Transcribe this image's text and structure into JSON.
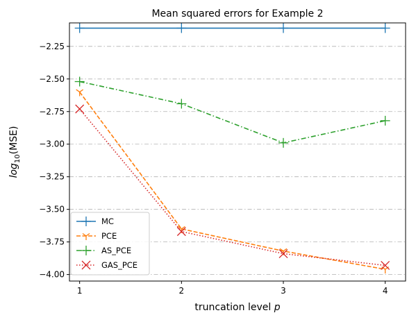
{
  "chart_data": {
    "type": "line",
    "title": "Mean squared errors for Example 2",
    "xlabel_main": "truncation level ",
    "xlabel_var": "p",
    "ylabel_prefix": "log",
    "ylabel_sub": "10",
    "ylabel_suffix": "(MSE)",
    "x": [
      1,
      2,
      3,
      4
    ],
    "x_ticks": [
      1,
      2,
      3,
      4
    ],
    "y_ticks": [
      -2.25,
      -2.5,
      -2.75,
      -3.0,
      -3.25,
      -3.5,
      -3.75,
      -4.0
    ],
    "y_tick_labels": [
      "−2.25",
      "−2.50",
      "−2.75",
      "−3.00",
      "−3.25",
      "−3.50",
      "−3.75",
      "−4.00"
    ],
    "xlim": [
      0.9,
      4.2
    ],
    "ylim": [
      -4.05,
      -2.07
    ],
    "grid": "y-dashdot",
    "legend_position": "lower-left",
    "series": [
      {
        "name": "MC",
        "values": [
          -2.11,
          -2.11,
          -2.11,
          -2.11
        ],
        "color": "#1f77b4",
        "linestyle": "solid",
        "marker": "plus"
      },
      {
        "name": "PCE",
        "values": [
          -2.6,
          -3.65,
          -3.82,
          -3.96
        ],
        "color": "#ff7f0e",
        "linestyle": "dashed",
        "marker": "tri-down"
      },
      {
        "name": "AS_PCE",
        "values": [
          -2.52,
          -2.69,
          -2.99,
          -2.82
        ],
        "color": "#2ca02c",
        "linestyle": "dashdot",
        "marker": "plus"
      },
      {
        "name": "GAS_PCE",
        "values": [
          -2.73,
          -3.67,
          -3.84,
          -3.93
        ],
        "color": "#d62728",
        "linestyle": "dotted",
        "marker": "x"
      }
    ]
  }
}
